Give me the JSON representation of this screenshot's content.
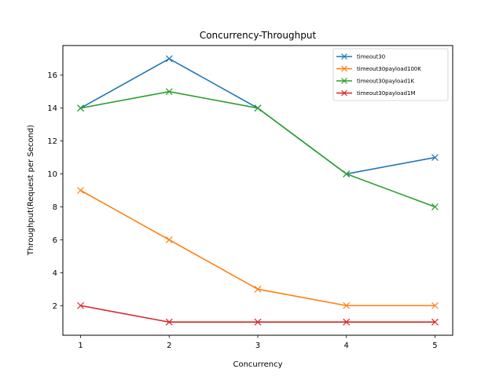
{
  "chart_data": {
    "type": "line",
    "title": "Concurrency-Throughput",
    "xlabel": "Concurrency",
    "ylabel": "Throughput(Request per Second)",
    "x": [
      1,
      2,
      3,
      4,
      5
    ],
    "xlim": [
      0.8,
      5.2
    ],
    "ylim": [
      0.2,
      17.8
    ],
    "xticks": [
      1,
      2,
      3,
      4,
      5
    ],
    "yticks": [
      2,
      4,
      6,
      8,
      10,
      12,
      14,
      16
    ],
    "grid": false,
    "legend_position": "top-right",
    "marker": "x",
    "series": [
      {
        "name": "timeout30",
        "color": "#1f77b4",
        "values": [
          14,
          17,
          14,
          10,
          11
        ]
      },
      {
        "name": "timeout30payload100K",
        "color": "#ff7f0e",
        "values": [
          9,
          6,
          3,
          2,
          2
        ]
      },
      {
        "name": "timeout30payload1K",
        "color": "#2ca02c",
        "values": [
          14,
          15,
          14,
          10,
          8
        ]
      },
      {
        "name": "timeout30payload1M",
        "color": "#d62728",
        "values": [
          2,
          1,
          1,
          1,
          1
        ]
      }
    ]
  }
}
